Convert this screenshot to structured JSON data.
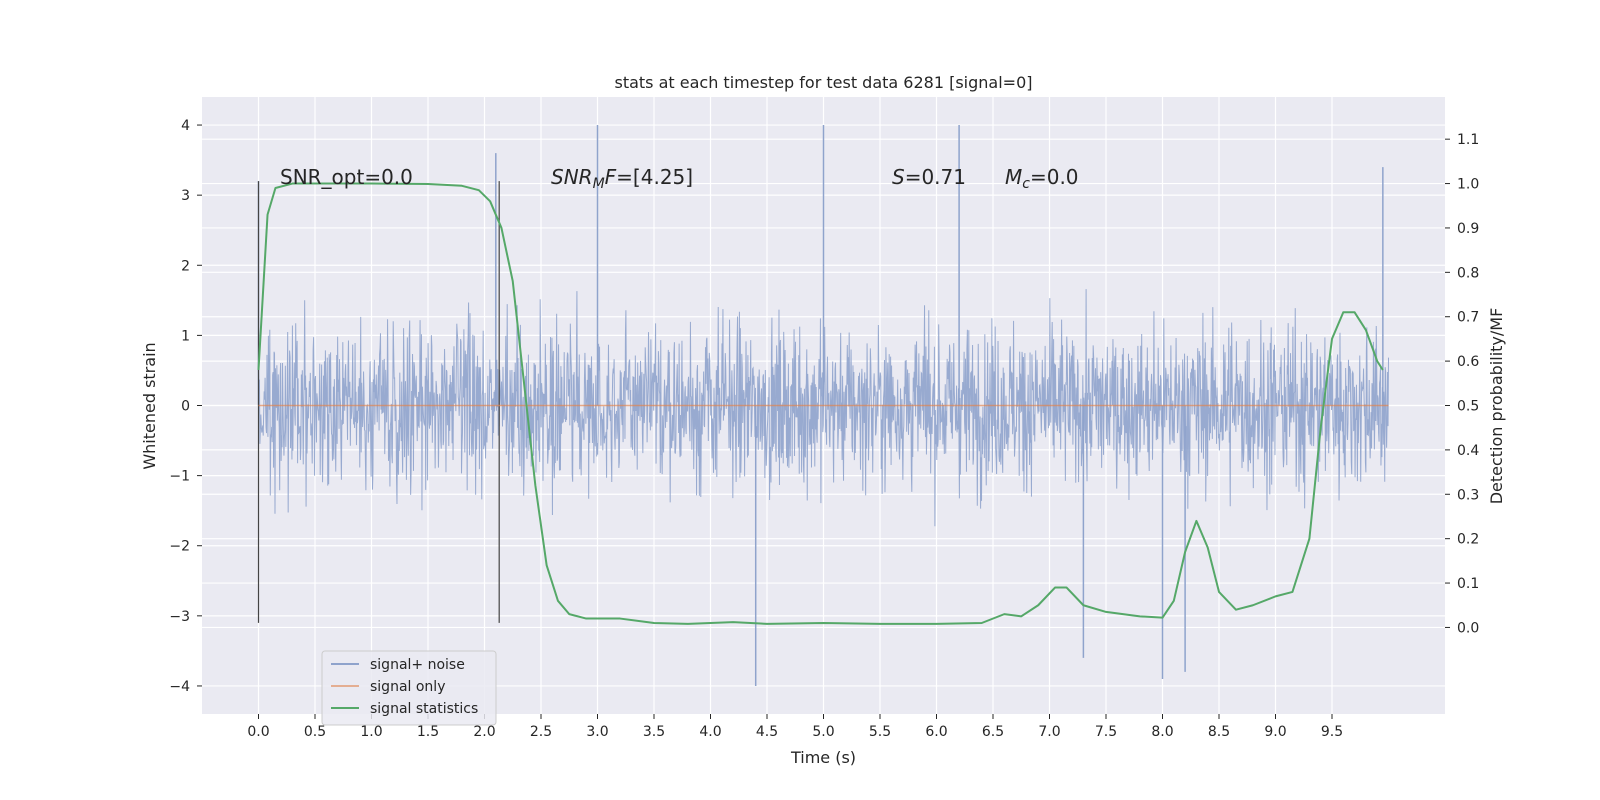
{
  "chart_data": {
    "type": "line",
    "title": "stats at each timestep for test data 6281 [signal=0]",
    "xlabel": "Time (s)",
    "ylabel": "Whitened strain",
    "y2label": "Detection probability/MF",
    "xlim": [
      -0.5,
      10.5
    ],
    "ylim": [
      -4.4,
      4.4
    ],
    "y2lim": [
      -0.195,
      1.195
    ],
    "x_ticks": [
      "0.0",
      "0.5",
      "1.0",
      "1.5",
      "2.0",
      "2.5",
      "3.0",
      "3.5",
      "4.0",
      "4.5",
      "5.0",
      "5.5",
      "6.0",
      "6.5",
      "7.0",
      "7.5",
      "8.0",
      "8.5",
      "9.0",
      "9.5"
    ],
    "y_ticks": [
      "4",
      "3",
      "2",
      "1",
      "0",
      "−1",
      "−2",
      "−3",
      "−4"
    ],
    "y2_ticks": [
      "1.1",
      "1.0",
      "0.9",
      "0.8",
      "0.7",
      "0.6",
      "0.5",
      "0.4",
      "0.3",
      "0.2",
      "0.1",
      "0.0"
    ],
    "grid": true,
    "legend_position": "lower-left",
    "annotations": {
      "snr_opt": "SNR_opt=0.0",
      "snr_mf_main": "SNR",
      "snr_mf_sub": "M",
      "snr_mf_f": "F",
      "snr_mf_value": "=[4.25]",
      "s_label": "S",
      "s_value": "=0.71",
      "mc_label": "M",
      "mc_sub": "c",
      "mc_value": "=0.0"
    },
    "vertical_lines_x": [
      0.0,
      2.13
    ],
    "series": [
      {
        "name": "signal+ noise",
        "color": "#8fa3cc",
        "x_range": [
          0.0,
          10.0
        ],
        "envelope_approx": {
          "typical_abs": 1.3,
          "min": -4.0,
          "max": 4.0
        },
        "notable_peaks": [
          [
            0.0,
            3.2
          ],
          [
            2.1,
            3.6
          ],
          [
            3.0,
            4.0
          ],
          [
            5.0,
            4.0
          ],
          [
            6.2,
            4.0
          ],
          [
            9.95,
            3.4
          ],
          [
            4.4,
            -4.0
          ],
          [
            8.0,
            -3.9
          ],
          [
            8.2,
            -3.8
          ],
          [
            7.3,
            -3.6
          ]
        ]
      },
      {
        "name": "signal only",
        "color": "#dd8452",
        "x": [
          0.0,
          10.0
        ],
        "y": [
          0.0,
          0.0
        ]
      },
      {
        "name": "signal statistics",
        "color": "#55a868",
        "axis": "right",
        "x": [
          0.0,
          0.08,
          0.15,
          0.3,
          0.6,
          1.0,
          1.5,
          1.8,
          1.95,
          2.05,
          2.15,
          2.25,
          2.35,
          2.45,
          2.55,
          2.65,
          2.75,
          2.9,
          3.2,
          3.5,
          3.8,
          4.0,
          4.2,
          4.5,
          5.0,
          5.5,
          6.0,
          6.4,
          6.6,
          6.75,
          6.9,
          7.05,
          7.15,
          7.3,
          7.5,
          7.8,
          8.0,
          8.1,
          8.2,
          8.3,
          8.4,
          8.5,
          8.65,
          8.8,
          9.0,
          9.15,
          9.3,
          9.4,
          9.5,
          9.6,
          9.7,
          9.8,
          9.9,
          9.95
        ],
        "y": [
          0.58,
          0.93,
          0.99,
          1.0,
          1.0,
          1.0,
          0.999,
          0.995,
          0.985,
          0.96,
          0.9,
          0.78,
          0.55,
          0.32,
          0.14,
          0.06,
          0.03,
          0.02,
          0.02,
          0.01,
          0.008,
          0.01,
          0.012,
          0.008,
          0.01,
          0.008,
          0.008,
          0.01,
          0.03,
          0.025,
          0.05,
          0.09,
          0.09,
          0.05,
          0.035,
          0.025,
          0.022,
          0.06,
          0.17,
          0.24,
          0.18,
          0.08,
          0.04,
          0.05,
          0.07,
          0.08,
          0.2,
          0.45,
          0.65,
          0.71,
          0.71,
          0.67,
          0.6,
          0.58
        ]
      }
    ]
  }
}
